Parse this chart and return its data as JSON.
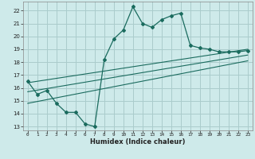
{
  "xlabel": "Humidex (Indice chaleur)",
  "bg_color": "#ceeaea",
  "grid_color": "#aacccc",
  "line_color": "#1a6b5e",
  "xlim": [
    -0.5,
    23.5
  ],
  "ylim": [
    12.7,
    22.7
  ],
  "xticks": [
    0,
    1,
    2,
    3,
    4,
    5,
    6,
    7,
    8,
    9,
    10,
    11,
    12,
    13,
    14,
    15,
    16,
    17,
    18,
    19,
    20,
    21,
    22,
    23
  ],
  "yticks": [
    13,
    14,
    15,
    16,
    17,
    18,
    19,
    20,
    21,
    22
  ],
  "main_x": [
    0,
    1,
    2,
    3,
    4,
    5,
    6,
    7,
    8,
    9,
    10,
    11,
    12,
    13,
    14,
    15,
    16,
    17,
    18,
    19,
    20,
    21,
    22,
    23
  ],
  "main_y": [
    16.5,
    15.5,
    15.8,
    14.8,
    14.1,
    14.1,
    13.2,
    13.0,
    18.2,
    19.8,
    20.5,
    22.3,
    21.0,
    20.7,
    21.3,
    21.6,
    21.8,
    19.3,
    19.1,
    19.0,
    18.8,
    18.8,
    18.8,
    18.9
  ],
  "line1_x": [
    0,
    23
  ],
  "line1_y": [
    16.4,
    19.0
  ],
  "line2_x": [
    0,
    23
  ],
  "line2_y": [
    15.7,
    18.55
  ],
  "line3_x": [
    0,
    23
  ],
  "line3_y": [
    14.8,
    18.1
  ]
}
